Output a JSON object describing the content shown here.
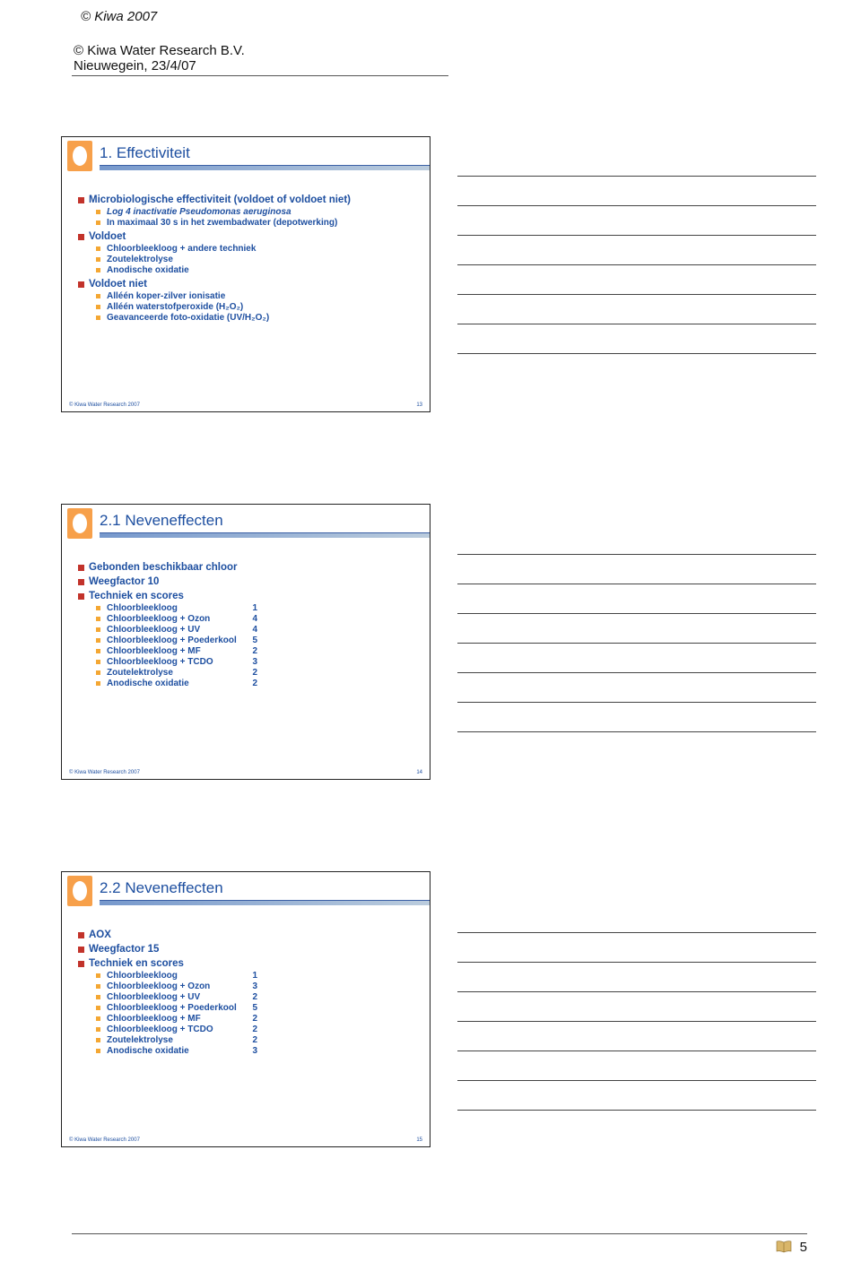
{
  "header": {
    "copyright_top": "© Kiwa 2007",
    "org": "© Kiwa Water Research B.V.",
    "location_date": "Nieuwegein, 23/4/07"
  },
  "colors": {
    "title_text": "#1e4fa0",
    "body_text": "#1e4fa0",
    "bullet1": "#c2332b",
    "bullet2": "#f4a733",
    "rule_shade": "#7698cc",
    "border": "#222222",
    "notes_rule": "#444444"
  },
  "slides": [
    {
      "title": "1. Effectiviteit",
      "slide_number": "13",
      "footer": "© Kiwa Water Research 2007",
      "groups": [
        {
          "heading": "Microbiologische effectiviteit (voldoet of voldoet niet)",
          "items": [
            {
              "label": "Log 4 inactivatie Pseudomonas aeruginosa",
              "italic": true
            },
            {
              "label": "In maximaal 30 s in het zwembadwater (depotwerking)"
            }
          ]
        },
        {
          "heading": "Voldoet",
          "items": [
            {
              "label": "Chloorbleekloog + andere techniek"
            },
            {
              "label": "Zoutelektrolyse"
            },
            {
              "label": "Anodische oxidatie"
            }
          ]
        },
        {
          "heading": "Voldoet niet",
          "items": [
            {
              "label": "Alléén koper-zilver ionisatie"
            },
            {
              "label": "Alléén waterstofperoxide (H₂O₂)"
            },
            {
              "label": "Geavanceerde foto-oxidatie (UV/H₂O₂)"
            }
          ]
        }
      ]
    },
    {
      "title": "2.1 Neveneffecten",
      "slide_number": "14",
      "footer": "© Kiwa Water Research 2007",
      "groups": [
        {
          "heading": "Gebonden beschikbaar chloor",
          "items": []
        },
        {
          "heading": "Weegfactor 10",
          "items": []
        },
        {
          "heading": "Techniek en scores",
          "items": [
            {
              "label": "Chloorbleekloog",
              "score": "1"
            },
            {
              "label": "Chloorbleekloog + Ozon",
              "score": "4"
            },
            {
              "label": "Chloorbleekloog + UV",
              "score": "4"
            },
            {
              "label": "Chloorbleekloog + Poederkool",
              "score": "5"
            },
            {
              "label": "Chloorbleekloog + MF",
              "score": "2"
            },
            {
              "label": "Chloorbleekloog + TCDO",
              "score": "3"
            },
            {
              "label": "Zoutelektrolyse",
              "score": "2"
            },
            {
              "label": "Anodische oxidatie",
              "score": "2"
            }
          ]
        }
      ]
    },
    {
      "title": "2.2 Neveneffecten",
      "slide_number": "15",
      "footer": "© Kiwa Water Research 2007",
      "groups": [
        {
          "heading": "AOX",
          "items": []
        },
        {
          "heading": "Weegfactor 15",
          "items": []
        },
        {
          "heading": "Techniek en scores",
          "items": [
            {
              "label": "Chloorbleekloog",
              "score": "1"
            },
            {
              "label": "Chloorbleekloog + Ozon",
              "score": "3"
            },
            {
              "label": "Chloorbleekloog + UV",
              "score": "2"
            },
            {
              "label": "Chloorbleekloog + Poederkool",
              "score": "5"
            },
            {
              "label": "Chloorbleekloog + MF",
              "score": "2"
            },
            {
              "label": "Chloorbleekloog + TCDO",
              "score": "2"
            },
            {
              "label": "Zoutelektrolyse",
              "score": "2"
            },
            {
              "label": "Anodische oxidatie",
              "score": "3"
            }
          ]
        }
      ]
    }
  ],
  "notes": {
    "lines_per_slide": 7
  },
  "page_number": "5"
}
